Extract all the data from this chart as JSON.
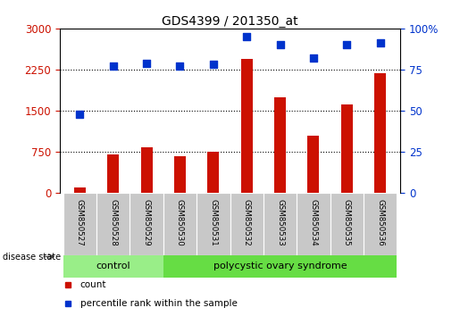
{
  "title": "GDS4399 / 201350_at",
  "samples": [
    "GSM850527",
    "GSM850528",
    "GSM850529",
    "GSM850530",
    "GSM850531",
    "GSM850532",
    "GSM850533",
    "GSM850534",
    "GSM850535",
    "GSM850536"
  ],
  "counts": [
    100,
    700,
    830,
    680,
    760,
    2450,
    1750,
    1050,
    1620,
    2180
  ],
  "percentile": [
    48,
    77,
    79,
    77,
    78,
    95,
    90,
    82,
    90,
    91
  ],
  "left_ylim": [
    0,
    3000
  ],
  "right_ylim": [
    0,
    100
  ],
  "left_yticks": [
    0,
    750,
    1500,
    2250,
    3000
  ],
  "right_yticks": [
    0,
    25,
    50,
    75,
    100
  ],
  "right_yticklabels": [
    "0",
    "25",
    "50",
    "75",
    "100%"
  ],
  "grid_levels": [
    750,
    1500,
    2250
  ],
  "bar_color": "#CC1100",
  "dot_color": "#0033CC",
  "control_color": "#99EE88",
  "pcos_color": "#66DD44",
  "sample_bg_color": "#C8C8C8",
  "n_control": 3,
  "n_pcos": 7,
  "group_labels": [
    "control",
    "polycystic ovary syndrome"
  ],
  "legend_labels": [
    "count",
    "percentile rank within the sample"
  ],
  "disease_state_label": "disease state",
  "fig_width": 5.15,
  "fig_height": 3.54,
  "bar_width": 0.35
}
